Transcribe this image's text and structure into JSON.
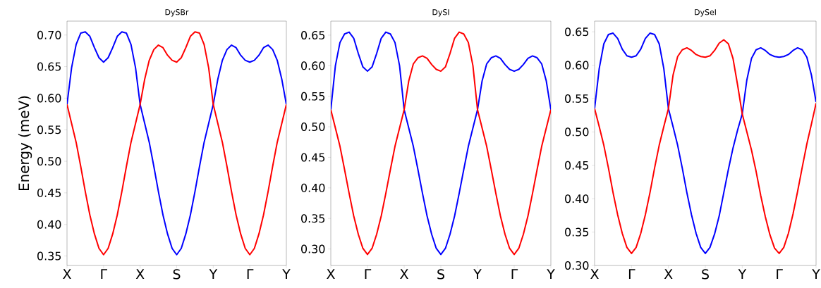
{
  "chart_data": [
    {
      "type": "line",
      "title": "DySBr",
      "ylabel": "Energy (meV)",
      "categories": [
        "X",
        null,
        null,
        null,
        null,
        null,
        null,
        null,
        "Γ",
        null,
        null,
        null,
        null,
        null,
        null,
        null,
        "X",
        null,
        null,
        null,
        null,
        null,
        null,
        null,
        "S",
        null,
        null,
        null,
        null,
        null,
        null,
        null,
        "Y",
        null,
        null,
        null,
        null,
        null,
        null,
        null,
        "Γ",
        null,
        null,
        null,
        null,
        null,
        null,
        null,
        "Y"
      ],
      "series": [
        {
          "color": "#0000ff",
          "values": [
            0.59,
            0.648,
            0.685,
            0.703,
            0.705,
            0.698,
            0.68,
            0.664,
            0.657,
            0.664,
            0.68,
            0.698,
            0.705,
            0.703,
            0.685,
            0.648,
            0.59,
            0.56,
            0.53,
            0.492,
            0.452,
            0.415,
            0.385,
            0.362,
            0.352,
            0.362,
            0.385,
            0.415,
            0.452,
            0.492,
            0.53,
            0.56,
            0.59,
            0.63,
            0.66,
            0.677,
            0.684,
            0.68,
            0.668,
            0.66,
            0.657,
            0.66,
            0.668,
            0.68,
            0.684,
            0.677,
            0.66,
            0.63,
            0.59
          ]
        },
        {
          "color": "#ff0000",
          "values": [
            0.59,
            0.56,
            0.53,
            0.492,
            0.452,
            0.415,
            0.385,
            0.362,
            0.352,
            0.362,
            0.385,
            0.415,
            0.452,
            0.492,
            0.53,
            0.56,
            0.59,
            0.63,
            0.66,
            0.677,
            0.684,
            0.68,
            0.668,
            0.66,
            0.657,
            0.664,
            0.68,
            0.698,
            0.705,
            0.703,
            0.685,
            0.648,
            0.59,
            0.56,
            0.53,
            0.492,
            0.452,
            0.415,
            0.385,
            0.362,
            0.352,
            0.362,
            0.385,
            0.415,
            0.452,
            0.492,
            0.53,
            0.56,
            0.59
          ]
        }
      ],
      "ylim": [
        0.335,
        0.722
      ],
      "yticks": [
        {
          "value": 0.35,
          "label": "0.35"
        },
        {
          "value": 0.4,
          "label": "0.40"
        },
        {
          "value": 0.45,
          "label": "0.45"
        },
        {
          "value": 0.5,
          "label": "0.50"
        },
        {
          "value": 0.55,
          "label": "0.55"
        },
        {
          "value": 0.6,
          "label": "0.60"
        },
        {
          "value": 0.65,
          "label": "0.65"
        },
        {
          "value": 0.7,
          "label": "0.70"
        }
      ]
    },
    {
      "type": "line",
      "title": "DySI",
      "categories": [
        "X",
        null,
        null,
        null,
        null,
        null,
        null,
        null,
        "Γ",
        null,
        null,
        null,
        null,
        null,
        null,
        null,
        "X",
        null,
        null,
        null,
        null,
        null,
        null,
        null,
        "S",
        null,
        null,
        null,
        null,
        null,
        null,
        null,
        "Y",
        null,
        null,
        null,
        null,
        null,
        null,
        null,
        "Γ",
        null,
        null,
        null,
        null,
        null,
        null,
        null,
        "Y"
      ],
      "series": [
        {
          "color": "#0000ff",
          "values": [
            0.528,
            0.6,
            0.638,
            0.652,
            0.655,
            0.645,
            0.62,
            0.598,
            0.591,
            0.598,
            0.62,
            0.645,
            0.655,
            0.652,
            0.638,
            0.6,
            0.528,
            0.498,
            0.468,
            0.43,
            0.391,
            0.354,
            0.324,
            0.301,
            0.291,
            0.301,
            0.324,
            0.354,
            0.391,
            0.43,
            0.468,
            0.498,
            0.528,
            0.575,
            0.603,
            0.613,
            0.616,
            0.612,
            0.602,
            0.594,
            0.591,
            0.594,
            0.602,
            0.612,
            0.616,
            0.613,
            0.603,
            0.575,
            0.528
          ]
        },
        {
          "color": "#ff0000",
          "values": [
            0.528,
            0.498,
            0.468,
            0.43,
            0.391,
            0.354,
            0.324,
            0.301,
            0.291,
            0.301,
            0.324,
            0.354,
            0.391,
            0.43,
            0.468,
            0.498,
            0.528,
            0.575,
            0.603,
            0.613,
            0.616,
            0.612,
            0.602,
            0.594,
            0.591,
            0.598,
            0.62,
            0.645,
            0.655,
            0.652,
            0.638,
            0.6,
            0.528,
            0.498,
            0.468,
            0.43,
            0.391,
            0.354,
            0.324,
            0.301,
            0.291,
            0.301,
            0.324,
            0.354,
            0.391,
            0.43,
            0.468,
            0.498,
            0.528
          ]
        }
      ],
      "ylim": [
        0.273,
        0.673
      ],
      "yticks": [
        {
          "value": 0.3,
          "label": "0.30"
        },
        {
          "value": 0.35,
          "label": "0.35"
        },
        {
          "value": 0.4,
          "label": "0.40"
        },
        {
          "value": 0.45,
          "label": "0.45"
        },
        {
          "value": 0.5,
          "label": "0.50"
        },
        {
          "value": 0.55,
          "label": "0.55"
        },
        {
          "value": 0.6,
          "label": "0.60"
        },
        {
          "value": 0.65,
          "label": "0.65"
        }
      ]
    },
    {
      "type": "line",
      "title": "DySeI",
      "categories": [
        "X",
        null,
        null,
        null,
        null,
        null,
        null,
        null,
        "Γ",
        null,
        null,
        null,
        null,
        null,
        null,
        null,
        "X",
        null,
        null,
        null,
        null,
        null,
        null,
        null,
        "S",
        null,
        null,
        null,
        null,
        null,
        null,
        null,
        "Y",
        null,
        null,
        null,
        null,
        null,
        null,
        null,
        "Γ",
        null,
        null,
        null,
        null,
        null,
        null,
        null,
        "Y"
      ],
      "series": [
        {
          "color": "#0000ff",
          "values": [
            0.535,
            0.595,
            0.632,
            0.646,
            0.648,
            0.64,
            0.624,
            0.614,
            0.612,
            0.614,
            0.624,
            0.64,
            0.648,
            0.646,
            0.632,
            0.595,
            0.535,
            0.508,
            0.48,
            0.446,
            0.409,
            0.376,
            0.348,
            0.327,
            0.318,
            0.327,
            0.347,
            0.374,
            0.409,
            0.444,
            0.476,
            0.503,
            0.527,
            0.578,
            0.61,
            0.623,
            0.626,
            0.622,
            0.616,
            0.613,
            0.612,
            0.613,
            0.616,
            0.622,
            0.626,
            0.623,
            0.612,
            0.585,
            0.545
          ]
        },
        {
          "color": "#ff0000",
          "values": [
            0.535,
            0.508,
            0.48,
            0.446,
            0.409,
            0.376,
            0.348,
            0.327,
            0.318,
            0.327,
            0.348,
            0.376,
            0.409,
            0.446,
            0.48,
            0.508,
            0.535,
            0.585,
            0.613,
            0.623,
            0.626,
            0.622,
            0.616,
            0.613,
            0.612,
            0.614,
            0.622,
            0.633,
            0.638,
            0.632,
            0.61,
            0.57,
            0.527,
            0.5,
            0.473,
            0.441,
            0.405,
            0.373,
            0.346,
            0.326,
            0.318,
            0.327,
            0.348,
            0.377,
            0.411,
            0.447,
            0.482,
            0.512,
            0.543
          ]
        }
      ],
      "ylim": [
        0.3,
        0.666
      ],
      "yticks": [
        {
          "value": 0.3,
          "label": "0.30"
        },
        {
          "value": 0.35,
          "label": "0.35"
        },
        {
          "value": 0.4,
          "label": "0.40"
        },
        {
          "value": 0.45,
          "label": "0.45"
        },
        {
          "value": 0.5,
          "label": "0.50"
        },
        {
          "value": 0.55,
          "label": "0.55"
        },
        {
          "value": 0.6,
          "label": "0.60"
        },
        {
          "value": 0.65,
          "label": "0.65"
        }
      ]
    }
  ]
}
